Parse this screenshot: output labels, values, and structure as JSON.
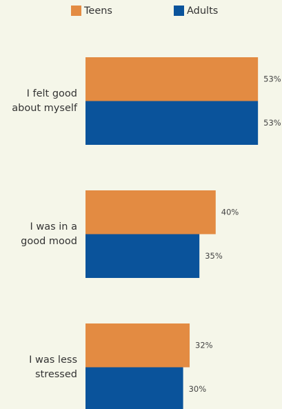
{
  "chart_data": {
    "type": "bar",
    "orientation": "horizontal",
    "categories": [
      "I felt good\nabout myself",
      "I was in a\ngood mood",
      "I was less\nstressed"
    ],
    "series": [
      {
        "name": "Teens",
        "color": "#e38b42",
        "values": [
          53,
          40,
          32
        ],
        "value_labels": [
          "53%",
          "40%",
          "32%"
        ]
      },
      {
        "name": "Adults",
        "color": "#0a539b",
        "values": [
          53,
          35,
          30
        ],
        "value_labels": [
          "53%",
          "35%",
          "30%"
        ]
      }
    ]
  }
}
